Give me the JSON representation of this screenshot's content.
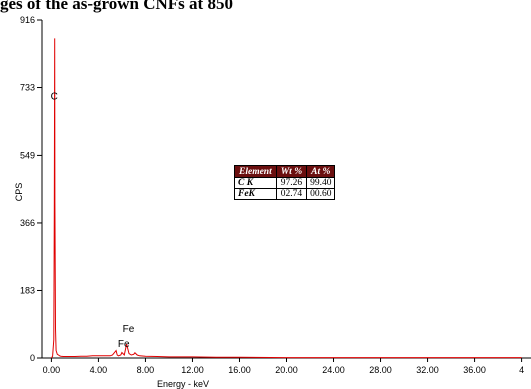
{
  "title": "ges of the as-grown CNFs  at 850",
  "chart_data": {
    "type": "line",
    "xlabel": "Energy - keV",
    "ylabel": "CPS",
    "xlim": [
      -0.8,
      40.8
    ],
    "ylim": [
      0,
      916
    ],
    "x_ticks": [
      "0.00",
      "4.00",
      "8.00",
      "12.00",
      "16.00",
      "20.00",
      "24.00",
      "28.00",
      "32.00",
      "36.00",
      "4"
    ],
    "y_ticks": [
      "0",
      "183",
      "366",
      "549",
      "733",
      "916"
    ],
    "series": [
      {
        "x": [
          0.0,
          0.1,
          0.2,
          0.25,
          0.277,
          0.3,
          0.35,
          0.4,
          0.5,
          0.6,
          0.7,
          0.8,
          1.0,
          1.5,
          2.0,
          2.5,
          3.0,
          3.5,
          4.0,
          4.5,
          5.0,
          5.2,
          5.5,
          5.6,
          5.7,
          5.9,
          6.0,
          6.2,
          6.4,
          6.6,
          6.8,
          7.0,
          7.1,
          7.3,
          7.5,
          8.0,
          9.0,
          10.0,
          12.0,
          14.0,
          16.0,
          20.0,
          24.0,
          28.0,
          32.0,
          36.0,
          40.0
        ],
        "y": [
          0,
          5,
          50,
          400,
          866,
          420,
          80,
          20,
          10,
          8,
          6,
          5,
          4,
          4,
          4,
          5,
          5,
          6,
          6,
          6,
          6,
          8,
          20,
          8,
          6,
          8,
          15,
          8,
          38,
          12,
          8,
          10,
          14,
          8,
          6,
          5,
          4,
          3,
          3,
          2,
          2,
          1,
          1,
          1,
          1,
          1,
          1
        ]
      }
    ],
    "peak_labels": [
      {
        "text": "C",
        "x": 0.277,
        "y": 700
      },
      {
        "text": "Fe",
        "x": 6.0,
        "y": 30
      },
      {
        "text": "Fe",
        "x": 6.4,
        "y": 70
      }
    ],
    "grid": false,
    "color": "#e00000"
  },
  "table": {
    "headers": [
      "Element",
      "Wt %",
      "At %"
    ],
    "rows": [
      [
        "C K",
        "97.26",
        "99.40"
      ],
      [
        "FeK",
        "02.74",
        "00.60"
      ]
    ]
  }
}
